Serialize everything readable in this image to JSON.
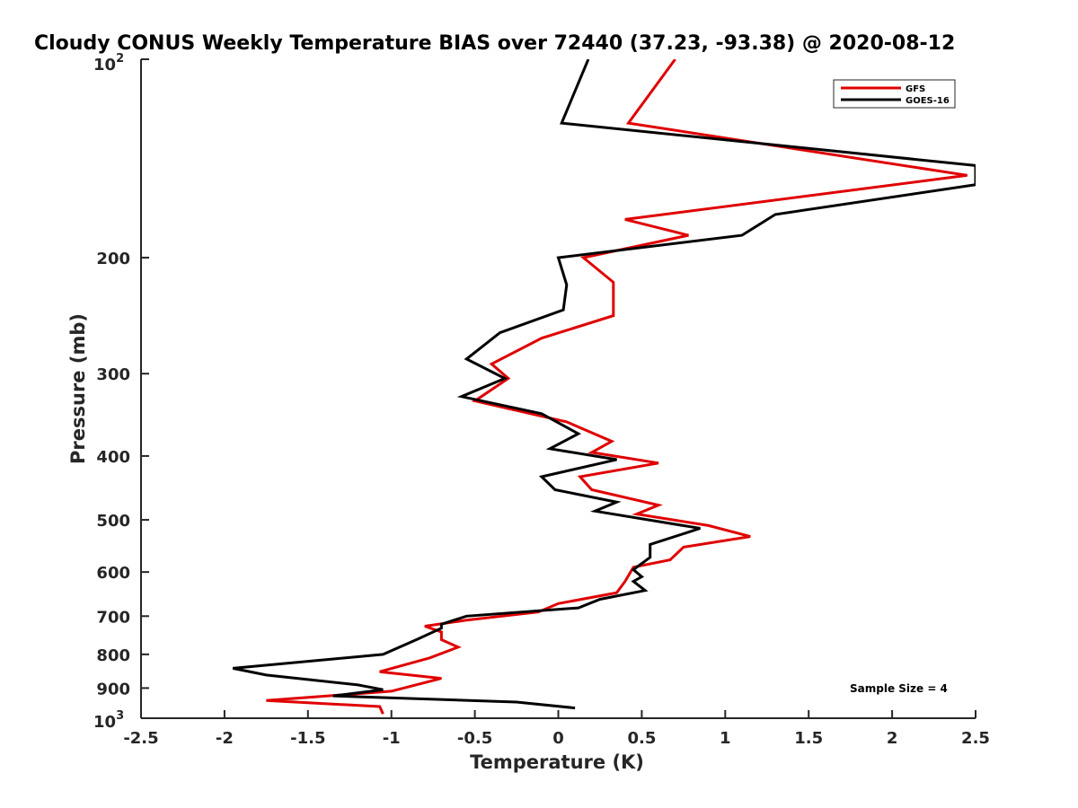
{
  "chart_data": {
    "type": "line",
    "title": "Cloudy CONUS Weekly Temperature BIAS over 72440 (37.23, -93.38) @ 2020-08-12",
    "xlabel": "Temperature (K)",
    "ylabel": "Pressure (mb)",
    "xlim": [
      -2.5,
      2.5
    ],
    "ylim": [
      100,
      1000
    ],
    "yscale": "log",
    "yreversed": true,
    "grid": false,
    "x_ticks": [
      -2.5,
      -2,
      -1.5,
      -1,
      -0.5,
      0,
      0.5,
      1,
      1.5,
      2,
      2.5
    ],
    "x_tick_labels": [
      "-2.5",
      "-2",
      "-1.5",
      "-1",
      "-0.5",
      "0",
      "0.5",
      "1",
      "1.5",
      "2",
      "2.5"
    ],
    "y_ticks": [
      200,
      300,
      400,
      500,
      600,
      700,
      800,
      900
    ],
    "y_tick_labels": [
      "200",
      "300",
      "400",
      "500",
      "600",
      "700",
      "800",
      "900"
    ],
    "y_tick_top": {
      "base": "10",
      "exp": "2"
    },
    "y_tick_bottom": {
      "base": "10",
      "exp": "3"
    },
    "legend_position": "top-right",
    "annotation": "Sample Size = 4",
    "series": [
      {
        "name": "GFS",
        "color": "#e00000",
        "points": [
          [
            0.7,
            100
          ],
          [
            0.42,
            125
          ],
          [
            2.45,
            150
          ],
          [
            0.4,
            175
          ],
          [
            0.78,
            185
          ],
          [
            0.15,
            200
          ],
          [
            0.33,
            218
          ],
          [
            0.33,
            245
          ],
          [
            -0.1,
            265
          ],
          [
            -0.4,
            290
          ],
          [
            -0.3,
            305
          ],
          [
            -0.5,
            330
          ],
          [
            0.05,
            355
          ],
          [
            0.32,
            380
          ],
          [
            0.2,
            395
          ],
          [
            0.6,
            410
          ],
          [
            0.13,
            430
          ],
          [
            0.2,
            450
          ],
          [
            0.6,
            475
          ],
          [
            0.47,
            490
          ],
          [
            0.9,
            510
          ],
          [
            1.15,
            530
          ],
          [
            0.75,
            550
          ],
          [
            0.67,
            575
          ],
          [
            0.45,
            590
          ],
          [
            0.4,
            620
          ],
          [
            0.35,
            645
          ],
          [
            0.0,
            670
          ],
          [
            -0.12,
            690
          ],
          [
            -0.55,
            710
          ],
          [
            -0.8,
            725
          ],
          [
            -0.7,
            740
          ],
          [
            -0.7,
            760
          ],
          [
            -0.6,
            780
          ],
          [
            -0.77,
            810
          ],
          [
            -1.07,
            850
          ],
          [
            -0.7,
            870
          ],
          [
            -1.0,
            910
          ],
          [
            -1.75,
            940
          ],
          [
            -1.07,
            960
          ],
          [
            -1.05,
            985
          ]
        ]
      },
      {
        "name": "GOES-16",
        "color": "#000000",
        "points": [
          [
            0.18,
            100
          ],
          [
            0.02,
            125
          ],
          [
            2.5,
            145
          ],
          [
            2.5,
            155
          ],
          [
            1.3,
            172
          ],
          [
            1.1,
            185
          ],
          [
            0.0,
            200
          ],
          [
            0.05,
            220
          ],
          [
            0.03,
            240
          ],
          [
            -0.35,
            260
          ],
          [
            -0.55,
            285
          ],
          [
            -0.32,
            305
          ],
          [
            -0.58,
            325
          ],
          [
            -0.1,
            345
          ],
          [
            0.12,
            370
          ],
          [
            -0.05,
            390
          ],
          [
            0.35,
            405
          ],
          [
            -0.1,
            430
          ],
          [
            -0.02,
            450
          ],
          [
            0.35,
            470
          ],
          [
            0.22,
            485
          ],
          [
            0.85,
            515
          ],
          [
            0.55,
            545
          ],
          [
            0.55,
            570
          ],
          [
            0.45,
            595
          ],
          [
            0.5,
            610
          ],
          [
            0.45,
            620
          ],
          [
            0.52,
            640
          ],
          [
            0.25,
            660
          ],
          [
            0.12,
            680
          ],
          [
            -0.55,
            700
          ],
          [
            -0.7,
            720
          ],
          [
            -0.7,
            730
          ],
          [
            -0.85,
            760
          ],
          [
            -1.05,
            800
          ],
          [
            -1.95,
            840
          ],
          [
            -1.75,
            860
          ],
          [
            -1.2,
            890
          ],
          [
            -1.05,
            905
          ],
          [
            -1.35,
            925
          ],
          [
            -0.25,
            945
          ],
          [
            0.1,
            965
          ]
        ]
      }
    ]
  }
}
